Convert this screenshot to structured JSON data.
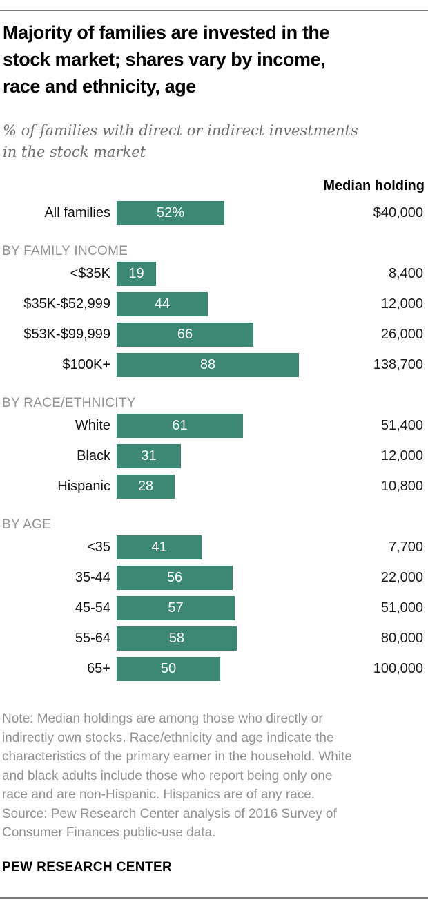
{
  "header": {
    "title_lines": [
      "Majority of families are invested in the",
      "stock market; shares vary by income,",
      "race and ethnicity, age"
    ],
    "subtitle_lines": [
      "% of families with direct or indirect investments",
      "in the stock market"
    ]
  },
  "chart": {
    "median_column_header": "Median holding",
    "bar_color": "#3C8874",
    "sections": [
      {
        "label": null,
        "rows": [
          {
            "category": "All families",
            "value": 52,
            "value_label": "52%",
            "median": "$40,000"
          }
        ]
      },
      {
        "label": "BY FAMILY INCOME",
        "rows": [
          {
            "category": "<$35K",
            "value": 19,
            "value_label": "19",
            "median": "8,400"
          },
          {
            "category": "$35K-$52,999",
            "value": 44,
            "value_label": "44",
            "median": "12,000"
          },
          {
            "category": "$53K-$99,999",
            "value": 66,
            "value_label": "66",
            "median": "26,000"
          },
          {
            "category": "$100K+",
            "value": 88,
            "value_label": "88",
            "median": "138,700"
          }
        ]
      },
      {
        "label": "BY RACE/ETHNICITY",
        "rows": [
          {
            "category": "White",
            "value": 61,
            "value_label": "61",
            "median": "51,400"
          },
          {
            "category": "Black",
            "value": 31,
            "value_label": "31",
            "median": "12,000"
          },
          {
            "category": "Hispanic",
            "value": 28,
            "value_label": "28",
            "median": "10,800"
          }
        ]
      },
      {
        "label": "BY AGE",
        "rows": [
          {
            "category": "<35",
            "value": 41,
            "value_label": "41",
            "median": "7,700"
          },
          {
            "category": "35-44",
            "value": 56,
            "value_label": "56",
            "median": "22,000"
          },
          {
            "category": "45-54",
            "value": 57,
            "value_label": "57",
            "median": "51,000"
          },
          {
            "category": "55-64",
            "value": 58,
            "value_label": "58",
            "median": "80,000"
          },
          {
            "category": "65+",
            "value": 50,
            "value_label": "50",
            "median": "100,000"
          }
        ]
      }
    ]
  },
  "chart_data": {
    "type": "bar",
    "orientation": "horizontal",
    "title": "Majority of families are invested in the stock market; shares vary by income, race and ethnicity, age",
    "subtitle": "% of families with direct or indirect investments in the stock market",
    "group_labels": [
      "All",
      "BY FAMILY INCOME",
      "BY RACE/ETHNICITY",
      "BY AGE"
    ],
    "categories": [
      "All families",
      "<$35K",
      "$35K-$52,999",
      "$53K-$99,999",
      "$100K+",
      "White",
      "Black",
      "Hispanic",
      "<35",
      "35-44",
      "45-54",
      "55-64",
      "65+"
    ],
    "series": [
      {
        "name": "% of families invested in the stock market",
        "values": [
          52,
          19,
          44,
          66,
          88,
          61,
          31,
          28,
          41,
          56,
          57,
          58,
          50
        ]
      },
      {
        "name": "Median holding ($)",
        "values": [
          40000,
          8400,
          12000,
          26000,
          138700,
          51400,
          12000,
          10800,
          7700,
          22000,
          51000,
          80000,
          100000
        ]
      }
    ],
    "median_labels": [
      "$40,000",
      "8,400",
      "12,000",
      "26,000",
      "138,700",
      "51,400",
      "12,000",
      "10,800",
      "7,700",
      "22,000",
      "51,000",
      "80,000",
      "100,000"
    ],
    "xlim": [
      0,
      100
    ],
    "grid": false,
    "legend_position": "none",
    "bar_color": "#3C8874"
  },
  "footer": {
    "note_lines": [
      "Note: Median holdings are among those who directly or",
      "indirectly own stocks. Race/ethnicity and age indicate the",
      "characteristics of the primary earner in the household. White",
      "and black adults include those who report being only one",
      "race and are non-Hispanic. Hispanics are of any race.",
      "Source: Pew Research Center analysis of 2016 Survey of",
      "Consumer Finances public-use data."
    ],
    "brand": "PEW RESEARCH CENTER"
  }
}
